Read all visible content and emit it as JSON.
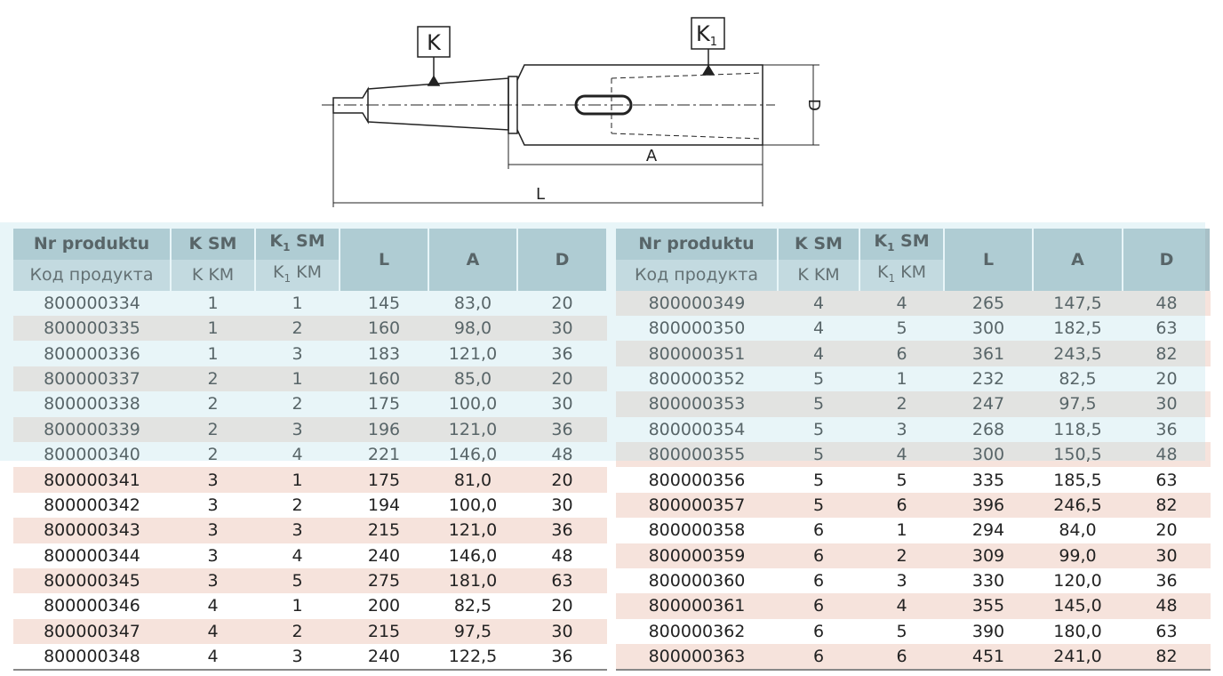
{
  "diagram": {
    "label_k": "K",
    "label_k1": {
      "main": "K",
      "sub": "1"
    },
    "label_d": "D",
    "label_a": "A",
    "label_l": "L"
  },
  "header": {
    "top": [
      "Nr produktu",
      {
        "main": "K",
        "tail": " SM"
      },
      {
        "main": "K",
        "sub": "1",
        "tail": " SM"
      },
      "L",
      "A",
      "D"
    ],
    "bottom": [
      "Код продукта",
      {
        "main": "K",
        "tail": " KM"
      },
      {
        "main": "K",
        "sub": "1",
        "tail": " KM"
      }
    ]
  },
  "tables": [
    {
      "rows": [
        [
          "800000334",
          "1",
          "1",
          "145",
          "83,0",
          "20"
        ],
        [
          "800000335",
          "1",
          "2",
          "160",
          "98,0",
          "30"
        ],
        [
          "800000336",
          "1",
          "3",
          "183",
          "121,0",
          "36"
        ],
        [
          "800000337",
          "2",
          "1",
          "160",
          "85,0",
          "20"
        ],
        [
          "800000338",
          "2",
          "2",
          "175",
          "100,0",
          "30"
        ],
        [
          "800000339",
          "2",
          "3",
          "196",
          "121,0",
          "36"
        ],
        [
          "800000340",
          "2",
          "4",
          "221",
          "146,0",
          "48"
        ],
        [
          "800000341",
          "3",
          "1",
          "175",
          "81,0",
          "20"
        ],
        [
          "800000342",
          "3",
          "2",
          "194",
          "100,0",
          "30"
        ],
        [
          "800000343",
          "3",
          "3",
          "215",
          "121,0",
          "36"
        ],
        [
          "800000344",
          "3",
          "4",
          "240",
          "146,0",
          "48"
        ],
        [
          "800000345",
          "3",
          "5",
          "275",
          "181,0",
          "63"
        ],
        [
          "800000346",
          "4",
          "1",
          "200",
          "82,5",
          "20"
        ],
        [
          "800000347",
          "4",
          "2",
          "215",
          "97,5",
          "30"
        ],
        [
          "800000348",
          "4",
          "3",
          "240",
          "122,5",
          "36"
        ]
      ]
    },
    {
      "rows": [
        [
          "800000349",
          "4",
          "4",
          "265",
          "147,5",
          "48"
        ],
        [
          "800000350",
          "4",
          "5",
          "300",
          "182,5",
          "63"
        ],
        [
          "800000351",
          "4",
          "6",
          "361",
          "243,5",
          "82"
        ],
        [
          "800000352",
          "5",
          "1",
          "232",
          "82,5",
          "20"
        ],
        [
          "800000353",
          "5",
          "2",
          "247",
          "97,5",
          "30"
        ],
        [
          "800000354",
          "5",
          "3",
          "268",
          "118,5",
          "36"
        ],
        [
          "800000355",
          "5",
          "4",
          "300",
          "150,5",
          "48"
        ],
        [
          "800000356",
          "5",
          "5",
          "335",
          "185,5",
          "63"
        ],
        [
          "800000357",
          "5",
          "6",
          "396",
          "246,5",
          "82"
        ],
        [
          "800000358",
          "6",
          "1",
          "294",
          "84,0",
          "20"
        ],
        [
          "800000359",
          "6",
          "2",
          "309",
          "99,0",
          "30"
        ],
        [
          "800000360",
          "6",
          "3",
          "330",
          "120,0",
          "36"
        ],
        [
          "800000361",
          "6",
          "4",
          "355",
          "145,0",
          "48"
        ],
        [
          "800000362",
          "6",
          "5",
          "390",
          "180,0",
          "63"
        ],
        [
          "800000363",
          "6",
          "6",
          "451",
          "241,0",
          "82"
        ]
      ]
    }
  ]
}
